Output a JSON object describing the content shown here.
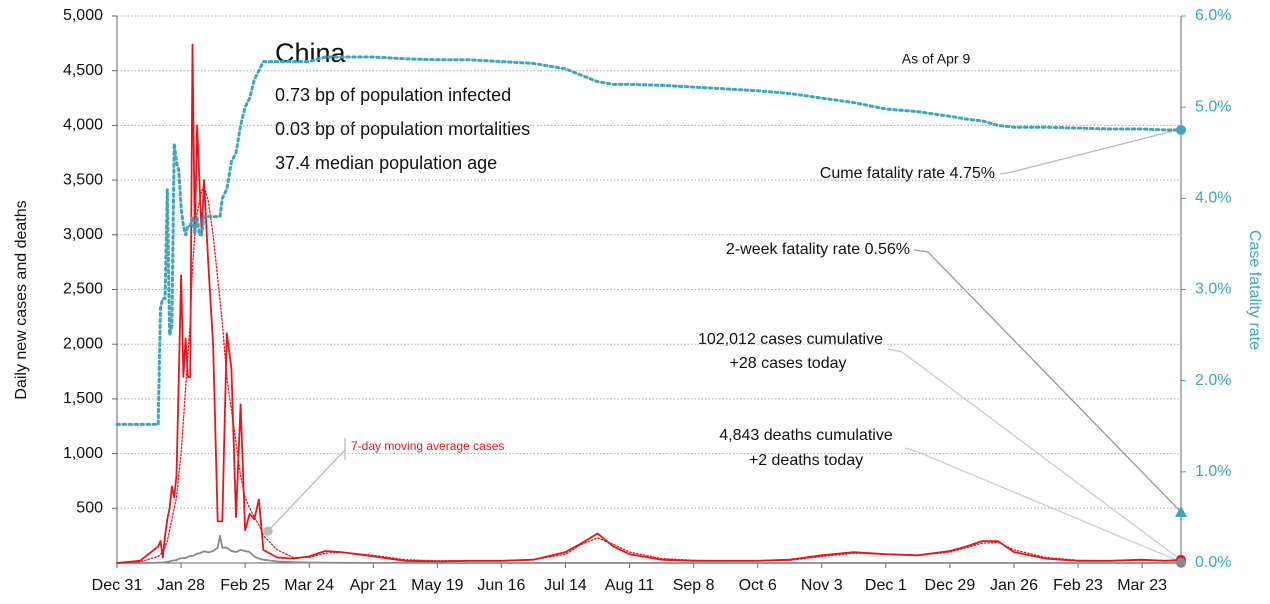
{
  "chart_data": {
    "type": "line",
    "y_label": "Daily new cases and deaths",
    "y2_label": "Case fatality rate",
    "country": "China",
    "facts": [
      "0.73 bp of population infected",
      "0.03 bp of population mortalities",
      "37.4 median population age"
    ],
    "as_of": "As of Apr 9",
    "moving_average_label": "7-day moving average cases",
    "cume_rate_label": "Cume fatality rate 4.75%",
    "two_week_rate_label": "2-week fatality rate 0.56%",
    "two_week_rate": 0.56,
    "cases_labels": [
      "102,012 cases cumulative",
      "+28 cases today"
    ],
    "deaths_labels": [
      "4,843 deaths cumulative",
      "+2 deaths today"
    ],
    "x": [
      0,
      10,
      18,
      19,
      20,
      21,
      22,
      23,
      24,
      25,
      26,
      27,
      28,
      29,
      30,
      31,
      32,
      33,
      34,
      35,
      36,
      37,
      38,
      40,
      42,
      44,
      45,
      46,
      48,
      50,
      52,
      54,
      56,
      58,
      60,
      62,
      64,
      70,
      77,
      84,
      91,
      98,
      112,
      126,
      140,
      154,
      168,
      182,
      196,
      203,
      210,
      217,
      224,
      238,
      252,
      266,
      280,
      294,
      308,
      322,
      336,
      350,
      364,
      371,
      378,
      385,
      392,
      406,
      420,
      434,
      448,
      458,
      465
    ],
    "xlim": [
      0,
      465
    ],
    "xticks": [
      {
        "value": 0,
        "label": "Dec 31"
      },
      {
        "value": 28,
        "label": "Jan 28"
      },
      {
        "value": 56,
        "label": "Feb 25"
      },
      {
        "value": 84,
        "label": "Mar 24"
      },
      {
        "value": 112,
        "label": "Apr 21"
      },
      {
        "value": 140,
        "label": "May 19"
      },
      {
        "value": 168,
        "label": "Jun 16"
      },
      {
        "value": 196,
        "label": "Jul 14"
      },
      {
        "value": 224,
        "label": "Aug 11"
      },
      {
        "value": 252,
        "label": "Sep 8"
      },
      {
        "value": 280,
        "label": "Oct 6"
      },
      {
        "value": 308,
        "label": "Nov 3"
      },
      {
        "value": 336,
        "label": "Dec 1"
      },
      {
        "value": 364,
        "label": "Dec 29"
      },
      {
        "value": 392,
        "label": "Jan 26"
      },
      {
        "value": 420,
        "label": "Feb 23"
      },
      {
        "value": 448,
        "label": "Mar 23"
      }
    ],
    "ylim": [
      0,
      5000
    ],
    "yticks": [
      500,
      {
        "value": 1000,
        "label": "1,000"
      },
      {
        "value": 1500,
        "label": "1,500"
      },
      {
        "value": 2000,
        "label": "2,000"
      },
      {
        "value": 2500,
        "label": "2,500"
      },
      {
        "value": 3000,
        "label": "3,000"
      },
      {
        "value": 3500,
        "label": "3,500"
      },
      {
        "value": 4000,
        "label": "4,000"
      },
      {
        "value": 4500,
        "label": "4,500"
      },
      {
        "value": 5000,
        "label": "5,000"
      }
    ],
    "y2lim": [
      0,
      6
    ],
    "y2ticks": [
      {
        "value": 0,
        "label": "0.0%"
      },
      {
        "value": 1,
        "label": "1.0%"
      },
      {
        "value": 2,
        "label": "2.0%"
      },
      {
        "value": 3,
        "label": "3.0%"
      },
      {
        "value": 4,
        "label": "4.0%"
      },
      {
        "value": 5,
        "label": "5.0%"
      },
      {
        "value": 6,
        "label": "6.0%"
      }
    ],
    "grid": true,
    "series": [
      {
        "name": "Daily new cases",
        "color": "#e8141b",
        "style": "solid",
        "values": [
          0,
          20,
          150,
          200,
          50,
          250,
          400,
          500,
          700,
          600,
          800,
          1700,
          2630,
          1700,
          2050,
          1700,
          1700,
          4740,
          3000,
          4000,
          3500,
          3000,
          3500,
          2700,
          2000,
          380,
          380,
          380,
          2100,
          1780,
          420,
          1450,
          300,
          450,
          400,
          580,
          120,
          50,
          40,
          60,
          110,
          100,
          60,
          20,
          15,
          20,
          20,
          30,
          100,
          180,
          270,
          150,
          80,
          30,
          20,
          20,
          20,
          30,
          70,
          100,
          80,
          70,
          110,
          150,
          200,
          200,
          100,
          40,
          20,
          20,
          30,
          20,
          28
        ]
      },
      {
        "name": "7-day moving average cases",
        "color": "#e8141b",
        "style": "dotted",
        "values": [
          0,
          10,
          60,
          80,
          100,
          150,
          200,
          300,
          400,
          500,
          600,
          800,
          1000,
          1300,
          1600,
          1900,
          2200,
          2700,
          3000,
          3200,
          3300,
          3400,
          3450,
          3300,
          3000,
          2600,
          2400,
          2200,
          1700,
          1400,
          1100,
          800,
          600,
          500,
          420,
          350,
          250,
          120,
          50,
          50,
          90,
          100,
          70,
          30,
          20,
          20,
          20,
          30,
          80,
          170,
          230,
          170,
          100,
          40,
          25,
          20,
          20,
          25,
          60,
          90,
          80,
          70,
          100,
          140,
          180,
          190,
          120,
          50,
          25,
          20,
          25,
          20,
          20
        ]
      },
      {
        "name": "Daily new deaths",
        "color": "#8a8a8a",
        "style": "solid",
        "values": [
          0,
          0,
          3,
          5,
          5,
          8,
          10,
          15,
          20,
          25,
          26,
          38,
          42,
          46,
          45,
          57,
          64,
          65,
          73,
          86,
          89,
          97,
          108,
          97,
          110,
          140,
          250,
          140,
          140,
          110,
          100,
          120,
          110,
          100,
          60,
          40,
          30,
          15,
          8,
          5,
          3,
          2,
          1,
          1,
          0,
          0,
          0,
          0,
          0,
          0,
          0,
          0,
          0,
          0,
          0,
          0,
          0,
          0,
          0,
          0,
          0,
          0,
          0,
          0,
          0,
          0,
          0,
          0,
          0,
          0,
          0,
          0,
          2
        ]
      },
      {
        "name": "Case fatality rate",
        "color": "#3ba7bf",
        "style": "dotted",
        "axis": "y2",
        "values": [
          1.52,
          1.52,
          1.52,
          2.8,
          2.9,
          2.9,
          4.1,
          2.5,
          2.6,
          4.6,
          4.4,
          4.3,
          3.9,
          3.7,
          3.6,
          3.7,
          3.7,
          3.8,
          3.6,
          3.8,
          3.6,
          3.6,
          3.8,
          3.8,
          3.8,
          3.8,
          3.8,
          4.0,
          4.1,
          4.4,
          4.5,
          4.8,
          5.0,
          5.1,
          5.3,
          5.4,
          5.5,
          5.5,
          5.5,
          5.5,
          5.55,
          5.55,
          5.55,
          5.53,
          5.52,
          5.52,
          5.5,
          5.48,
          5.42,
          5.35,
          5.28,
          5.25,
          5.25,
          5.24,
          5.22,
          5.2,
          5.18,
          5.15,
          5.1,
          5.05,
          4.98,
          4.95,
          4.9,
          4.87,
          4.85,
          4.8,
          4.78,
          4.78,
          4.77,
          4.76,
          4.76,
          4.75,
          4.75
        ]
      }
    ]
  }
}
